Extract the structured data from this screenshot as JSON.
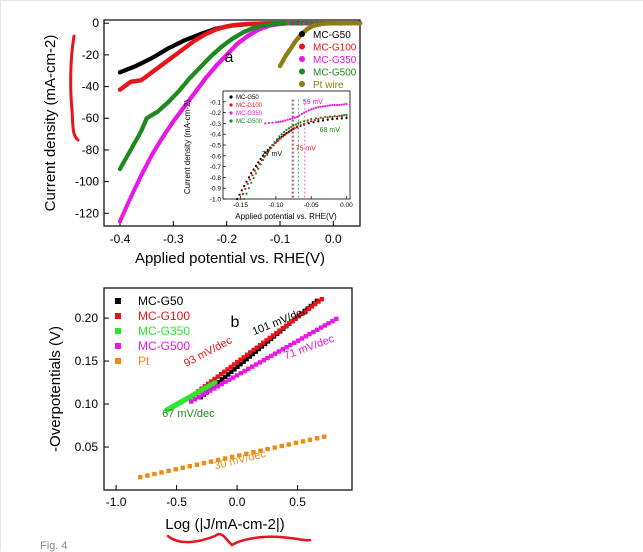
{
  "caption": "Fig. 4",
  "chart_data": [
    {
      "id": "a",
      "type": "scatter",
      "panel_label": "a",
      "xlabel": "Applied potential vs. RHE(V)",
      "ylabel": "Current density (mA-cm-2)",
      "xlim": [
        -0.43,
        0.05
      ],
      "ylim": [
        -128,
        2
      ],
      "xticks": [
        -0.4,
        -0.3,
        -0.2,
        -0.1,
        0.0
      ],
      "xtick_labels": [
        "-0.4",
        "-0.3",
        "-0.2",
        "-0.1",
        "0.0"
      ],
      "yticks": [
        0,
        -20,
        -40,
        -60,
        -80,
        -100,
        -120
      ],
      "ytick_labels": [
        "0",
        "-20",
        "-40",
        "-60",
        "-80",
        "-100",
        "-120"
      ],
      "legend_position": "top-right",
      "series": [
        {
          "name": "MC-G50",
          "color": "#000000",
          "x": [
            -0.4,
            -0.37,
            -0.34,
            -0.31,
            -0.28,
            -0.25,
            -0.22,
            -0.19,
            -0.16,
            -0.13,
            -0.1,
            -0.07,
            -0.04,
            0.0,
            0.05
          ],
          "y": [
            -31,
            -27,
            -22,
            -16,
            -11,
            -7,
            -3.5,
            -1.5,
            -0.6,
            -0.2,
            -0.1,
            0,
            0,
            0,
            0
          ]
        },
        {
          "name": "MC-G100",
          "color": "#e8141b",
          "x": [
            -0.4,
            -0.38,
            -0.36,
            -0.34,
            -0.32,
            -0.3,
            -0.28,
            -0.26,
            -0.24,
            -0.22,
            -0.2,
            -0.18,
            -0.16,
            -0.13,
            -0.1,
            -0.07,
            0.0,
            0.05
          ],
          "y": [
            -42,
            -37,
            -36,
            -31,
            -26,
            -21,
            -16,
            -11,
            -7,
            -4,
            -2,
            -1,
            -0.5,
            -0.2,
            0,
            0,
            0,
            0
          ]
        },
        {
          "name": "MC-G350",
          "color": "#e817e4",
          "x": [
            -0.4,
            -0.38,
            -0.36,
            -0.34,
            -0.32,
            -0.3,
            -0.28,
            -0.26,
            -0.24,
            -0.22,
            -0.2,
            -0.18,
            -0.16,
            -0.14,
            -0.12,
            -0.1,
            -0.08,
            0.0,
            0.05
          ],
          "y": [
            -125,
            -110,
            -96,
            -83,
            -72,
            -62,
            -53,
            -44,
            -35,
            -27,
            -20,
            -13,
            -8,
            -4,
            -1.5,
            -0.5,
            0,
            0,
            0
          ]
        },
        {
          "name": "MC-G500",
          "color": "#1e8a1e",
          "x": [
            -0.4,
            -0.38,
            -0.36,
            -0.35,
            -0.33,
            -0.31,
            -0.29,
            -0.27,
            -0.25,
            -0.23,
            -0.21,
            -0.19,
            -0.17,
            -0.15,
            -0.13,
            -0.11,
            -0.09,
            0.0,
            0.05
          ],
          "y": [
            -92,
            -80,
            -68,
            -60,
            -56,
            -50,
            -43,
            -35,
            -28,
            -21,
            -15,
            -10,
            -6,
            -3,
            -1.5,
            -0.5,
            0,
            0,
            0
          ]
        },
        {
          "name": "Pt wire",
          "color": "#8e7d12",
          "x": [
            -0.1,
            -0.09,
            -0.08,
            -0.07,
            -0.06,
            -0.05,
            -0.04,
            -0.03,
            -0.02,
            -0.01,
            0.0,
            0.02,
            0.05
          ],
          "y": [
            -27,
            -21,
            -16,
            -11,
            -7,
            -4,
            -2,
            -1,
            -0.4,
            -0.1,
            0,
            0,
            0
          ]
        }
      ],
      "inset": {
        "xlabel": "Applied potential vs. RHE(V)",
        "ylabel": "Current density (mA-cm-2)",
        "xlim": [
          -0.175,
          0.005
        ],
        "ylim": [
          -1.0,
          0.0
        ],
        "xticks": [
          -0.15,
          -0.1,
          -0.05,
          0.0
        ],
        "xtick_labels": [
          "-0.15",
          "-0.10",
          "-0.05",
          "0.00"
        ],
        "yticks": [
          -0.1,
          -0.2,
          -0.3,
          -0.4,
          -0.5,
          -0.6,
          -0.7,
          -0.8,
          -0.9,
          -1.0
        ],
        "ytick_labels": [
          "-0.1",
          "-0.2",
          "-0.3",
          "-0.4",
          "-0.5",
          "-0.6",
          "-0.7",
          "-0.8",
          "-0.9",
          "-1.0"
        ],
        "annotations": [
          {
            "text": "59 mV",
            "color": "#e817e4",
            "at": [
              -0.062,
              -0.12
            ]
          },
          {
            "text": "68 mV",
            "color": "#1e8a1e",
            "at": [
              -0.038,
              -0.38
            ]
          },
          {
            "text": "75 mV",
            "color": "#e8141b",
            "at": [
              -0.072,
              -0.55
            ]
          },
          {
            "text": "77 mV",
            "color": "#000000",
            "at": [
              -0.12,
              -0.6
            ]
          }
        ],
        "markers_x": [
          -0.077,
          -0.075,
          -0.068,
          -0.059
        ],
        "marker_colors": [
          "#000000",
          "#e8141b",
          "#1e8a1e",
          "#e817e4"
        ],
        "series": [
          {
            "name": "MC-G50",
            "color": "#000000",
            "x": [
              -0.155,
              -0.145,
              -0.135,
              -0.125,
              -0.115,
              -0.105,
              -0.095,
              -0.085,
              -0.075,
              -0.06,
              -0.04,
              -0.02,
              0.0
            ],
            "y": [
              -1.0,
              -0.88,
              -0.76,
              -0.66,
              -0.57,
              -0.5,
              -0.44,
              -0.39,
              -0.35,
              -0.31,
              -0.28,
              -0.26,
              -0.25
            ]
          },
          {
            "name": "MC-G100",
            "color": "#e8141b",
            "x": [
              -0.15,
              -0.14,
              -0.13,
              -0.12,
              -0.11,
              -0.1,
              -0.09,
              -0.08,
              -0.07,
              -0.055,
              -0.04,
              -0.02,
              0.0
            ],
            "y": [
              -1.0,
              -0.86,
              -0.74,
              -0.64,
              -0.55,
              -0.48,
              -0.42,
              -0.37,
              -0.33,
              -0.29,
              -0.26,
              -0.24,
              -0.23
            ]
          },
          {
            "name": "MC-G350",
            "color": "#e817e4",
            "x": [
              -0.115,
              -0.1,
              -0.09,
              -0.08,
              -0.07,
              -0.06,
              -0.05,
              -0.04,
              -0.03,
              -0.02,
              -0.01,
              0.0
            ],
            "y": [
              -0.3,
              -0.29,
              -0.28,
              -0.26,
              -0.24,
              -0.2,
              -0.17,
              -0.15,
              -0.14,
              -0.13,
              -0.13,
              -0.12
            ]
          },
          {
            "name": "MC-G500",
            "color": "#1e8a1e",
            "x": [
              -0.145,
              -0.135,
              -0.125,
              -0.115,
              -0.105,
              -0.095,
              -0.085,
              -0.075,
              -0.065,
              -0.05,
              -0.03,
              -0.01,
              0.0
            ],
            "y": [
              -1.0,
              -0.85,
              -0.72,
              -0.6,
              -0.5,
              -0.42,
              -0.36,
              -0.32,
              -0.29,
              -0.26,
              -0.24,
              -0.23,
              -0.22
            ]
          }
        ]
      }
    },
    {
      "id": "b",
      "type": "scatter",
      "panel_label": "b",
      "xlabel": "Log (|J/mA-cm-2|)",
      "ylabel": "-Overpotentials (V)",
      "xlim": [
        -1.1,
        0.95
      ],
      "ylim": [
        0.0,
        0.235
      ],
      "xticks": [
        -1.0,
        -0.5,
        0.0,
        0.5
      ],
      "xtick_labels": [
        "-1.0",
        "-0.5",
        "0.0",
        "0.5"
      ],
      "yticks": [
        0.05,
        0.1,
        0.15,
        0.2
      ],
      "ytick_labels": [
        "0.05",
        "0.10",
        "0.15",
        "0.20"
      ],
      "legend_position": "top-left",
      "series": [
        {
          "name": "MC-G50",
          "color": "#000000",
          "x_range": [
            -0.3,
            0.66
          ],
          "y_range": [
            0.108,
            0.22
          ]
        },
        {
          "name": "MC-G100",
          "color": "#e8141b",
          "x_range": [
            -0.32,
            0.7
          ],
          "y_range": [
            0.115,
            0.222
          ]
        },
        {
          "name": "MC-G350",
          "color": "#2fe62f",
          "x_range": [
            -0.58,
            -0.18
          ],
          "y_range": [
            0.093,
            0.125
          ]
        },
        {
          "name": "MC-G500",
          "color": "#e817e4",
          "x_range": [
            -0.38,
            0.82
          ],
          "y_range": [
            0.103,
            0.199
          ]
        },
        {
          "name": "Pt",
          "color": "#f08a13",
          "x_range": [
            -0.8,
            0.72
          ],
          "y_range": [
            0.015,
            0.062
          ]
        }
      ],
      "annotations": [
        {
          "text": "93 mV/dec",
          "color": "#e8141b",
          "at": [
            -0.42,
            0.143
          ],
          "rotate": -28
        },
        {
          "text": "101 mV/dec",
          "color": "#000000",
          "at": [
            0.14,
            0.18
          ],
          "rotate": -22
        },
        {
          "text": "71 mV/dec",
          "color": "#e817e4",
          "at": [
            0.4,
            0.152
          ],
          "rotate": -20
        },
        {
          "text": "67 mV/dec",
          "color": "#1e8a1e",
          "at": [
            -0.62,
            0.085
          ],
          "rotate": 0
        },
        {
          "text": "30 mV/dec",
          "color": "#f08a13",
          "at": [
            -0.18,
            0.024
          ],
          "rotate": -14
        }
      ]
    }
  ]
}
